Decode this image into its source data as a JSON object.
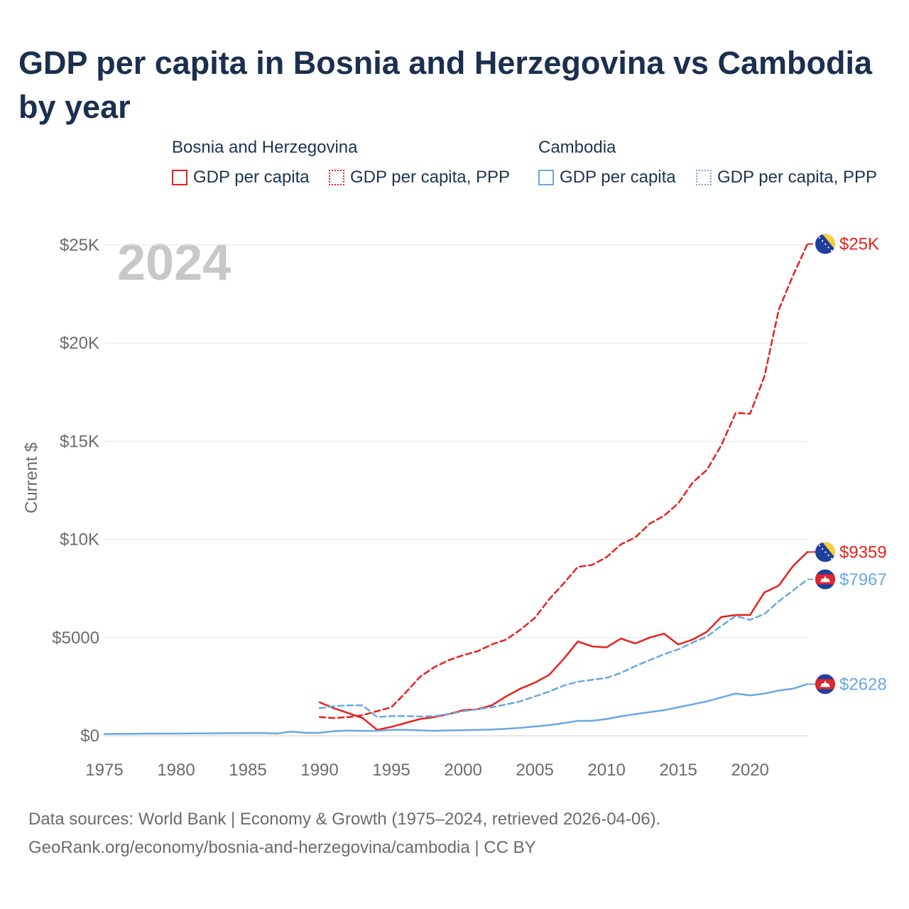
{
  "title": "GDP per capita in Bosnia and Herzegovina vs Cambodia by year",
  "legend": {
    "groups": [
      {
        "country": "Bosnia and Herzegovina",
        "items": [
          "GDP per capita",
          "GDP per capita, PPP"
        ]
      },
      {
        "country": "Cambodia",
        "items": [
          "GDP per capita",
          "GDP per capita, PPP"
        ]
      }
    ]
  },
  "footer": {
    "line1": "Data sources: World Bank | Economy & Growth (1975–2024, retrieved 2026-04-06).",
    "line2": "GeoRank.org/economy/bosnia-and-herzegovina/cambodia | CC BY"
  },
  "colors": {
    "bosnia": "#e8211d",
    "cambodia": "#6aa7e4"
  },
  "chart_data": {
    "type": "line",
    "title": "GDP per capita in Bosnia and Herzegovina vs Cambodia by year",
    "year_label": "2024",
    "ylabel": "Current $",
    "xlabel": "",
    "xlim": [
      1975,
      2024
    ],
    "ylim": [
      0,
      25000
    ],
    "x_ticks": [
      1975,
      1980,
      1985,
      1990,
      1995,
      2000,
      2005,
      2010,
      2015,
      2020
    ],
    "y_ticks": [
      0,
      5000,
      10000,
      15000,
      20000,
      25000
    ],
    "y_tick_labels": [
      "$0",
      "$5000",
      "$10K",
      "$15K",
      "$20K",
      "$25K"
    ],
    "grid": true,
    "end_labels": [
      {
        "series": "bih_ppp",
        "text": "$25K",
        "flag": "bosnia"
      },
      {
        "series": "bih_gdp",
        "text": "$9359",
        "flag": "bosnia"
      },
      {
        "series": "khm_ppp",
        "text": "$7967",
        "flag": "cambodia"
      },
      {
        "series": "khm_gdp",
        "text": "$2628",
        "flag": "cambodia"
      }
    ],
    "series": [
      {
        "id": "bih_gdp",
        "name": "Bosnia and Herzegovina – GDP per capita",
        "color": "#e8211d",
        "dash": "solid",
        "x": [
          1990,
          1991,
          1992,
          1993,
          1994,
          1995,
          1996,
          1997,
          1998,
          1999,
          2000,
          2001,
          2002,
          2003,
          2004,
          2005,
          2006,
          2007,
          2008,
          2009,
          2010,
          2011,
          2012,
          2013,
          2014,
          2015,
          2016,
          2017,
          2018,
          2019,
          2020,
          2021,
          2022,
          2023,
          2024
        ],
        "values": [
          1700,
          1400,
          1150,
          900,
          300,
          450,
          650,
          850,
          950,
          1100,
          1300,
          1350,
          1550,
          2000,
          2400,
          2700,
          3100,
          3900,
          4800,
          4550,
          4500,
          4950,
          4700,
          5000,
          5200,
          4650,
          4900,
          5300,
          6050,
          6150,
          6150,
          7300,
          7650,
          8650,
          9359
        ]
      },
      {
        "id": "bih_ppp",
        "name": "Bosnia and Herzegovina – GDP per capita, PPP",
        "color": "#e8211d",
        "dash": "dashed",
        "x": [
          1990,
          1991,
          1992,
          1993,
          1994,
          1995,
          1996,
          1997,
          1998,
          1999,
          2000,
          2001,
          2002,
          2003,
          2004,
          2005,
          2006,
          2007,
          2008,
          2009,
          2010,
          2011,
          2012,
          2013,
          2014,
          2015,
          2016,
          2017,
          2018,
          2019,
          2020,
          2021,
          2022,
          2023,
          2024
        ],
        "values": [
          950,
          900,
          950,
          1050,
          1250,
          1450,
          2200,
          3000,
          3500,
          3850,
          4100,
          4300,
          4650,
          4900,
          5400,
          6000,
          6950,
          7750,
          8600,
          8700,
          9100,
          9750,
          10100,
          10800,
          11200,
          11850,
          12900,
          13550,
          14800,
          16450,
          16400,
          18300,
          21700,
          23450,
          25050
        ]
      },
      {
        "id": "khm_gdp",
        "name": "Cambodia – GDP per capita",
        "color": "#6aa7e4",
        "dash": "solid",
        "x": [
          1975,
          1976,
          1977,
          1978,
          1979,
          1980,
          1981,
          1982,
          1983,
          1984,
          1985,
          1986,
          1987,
          1988,
          1989,
          1990,
          1991,
          1992,
          1993,
          1994,
          1995,
          1996,
          1997,
          1998,
          1999,
          2000,
          2001,
          2002,
          2003,
          2004,
          2005,
          2006,
          2007,
          2008,
          2009,
          2010,
          2011,
          2012,
          2013,
          2014,
          2015,
          2016,
          2017,
          2018,
          2019,
          2020,
          2021,
          2022,
          2023,
          2024
        ],
        "values": [
          90,
          95,
          95,
          110,
          110,
          110,
          115,
          120,
          125,
          130,
          135,
          140,
          110,
          210,
          150,
          150,
          230,
          260,
          250,
          250,
          300,
          300,
          270,
          250,
          270,
          280,
          300,
          320,
          350,
          400,
          470,
          540,
          640,
          760,
          760,
          850,
          990,
          1100,
          1200,
          1300,
          1450,
          1600,
          1750,
          1950,
          2150,
          2050,
          2150,
          2300,
          2400,
          2628
        ]
      },
      {
        "id": "khm_ppp",
        "name": "Cambodia – GDP per capita, PPP",
        "color": "#6aa7e4",
        "dash": "dashed",
        "x": [
          1990,
          1991,
          1992,
          1993,
          1994,
          1995,
          1996,
          1997,
          1998,
          1999,
          2000,
          2001,
          2002,
          2003,
          2004,
          2005,
          2006,
          2007,
          2008,
          2009,
          2010,
          2011,
          2012,
          2013,
          2014,
          2015,
          2016,
          2017,
          2018,
          2019,
          2020,
          2021,
          2022,
          2023,
          2024
        ],
        "values": [
          1400,
          1500,
          1550,
          1550,
          950,
          1000,
          1000,
          980,
          1000,
          1100,
          1250,
          1350,
          1450,
          1600,
          1750,
          2000,
          2250,
          2550,
          2750,
          2850,
          2950,
          3200,
          3550,
          3850,
          4150,
          4400,
          4750,
          5050,
          5600,
          6100,
          5900,
          6200,
          6850,
          7400,
          7967
        ]
      }
    ]
  }
}
